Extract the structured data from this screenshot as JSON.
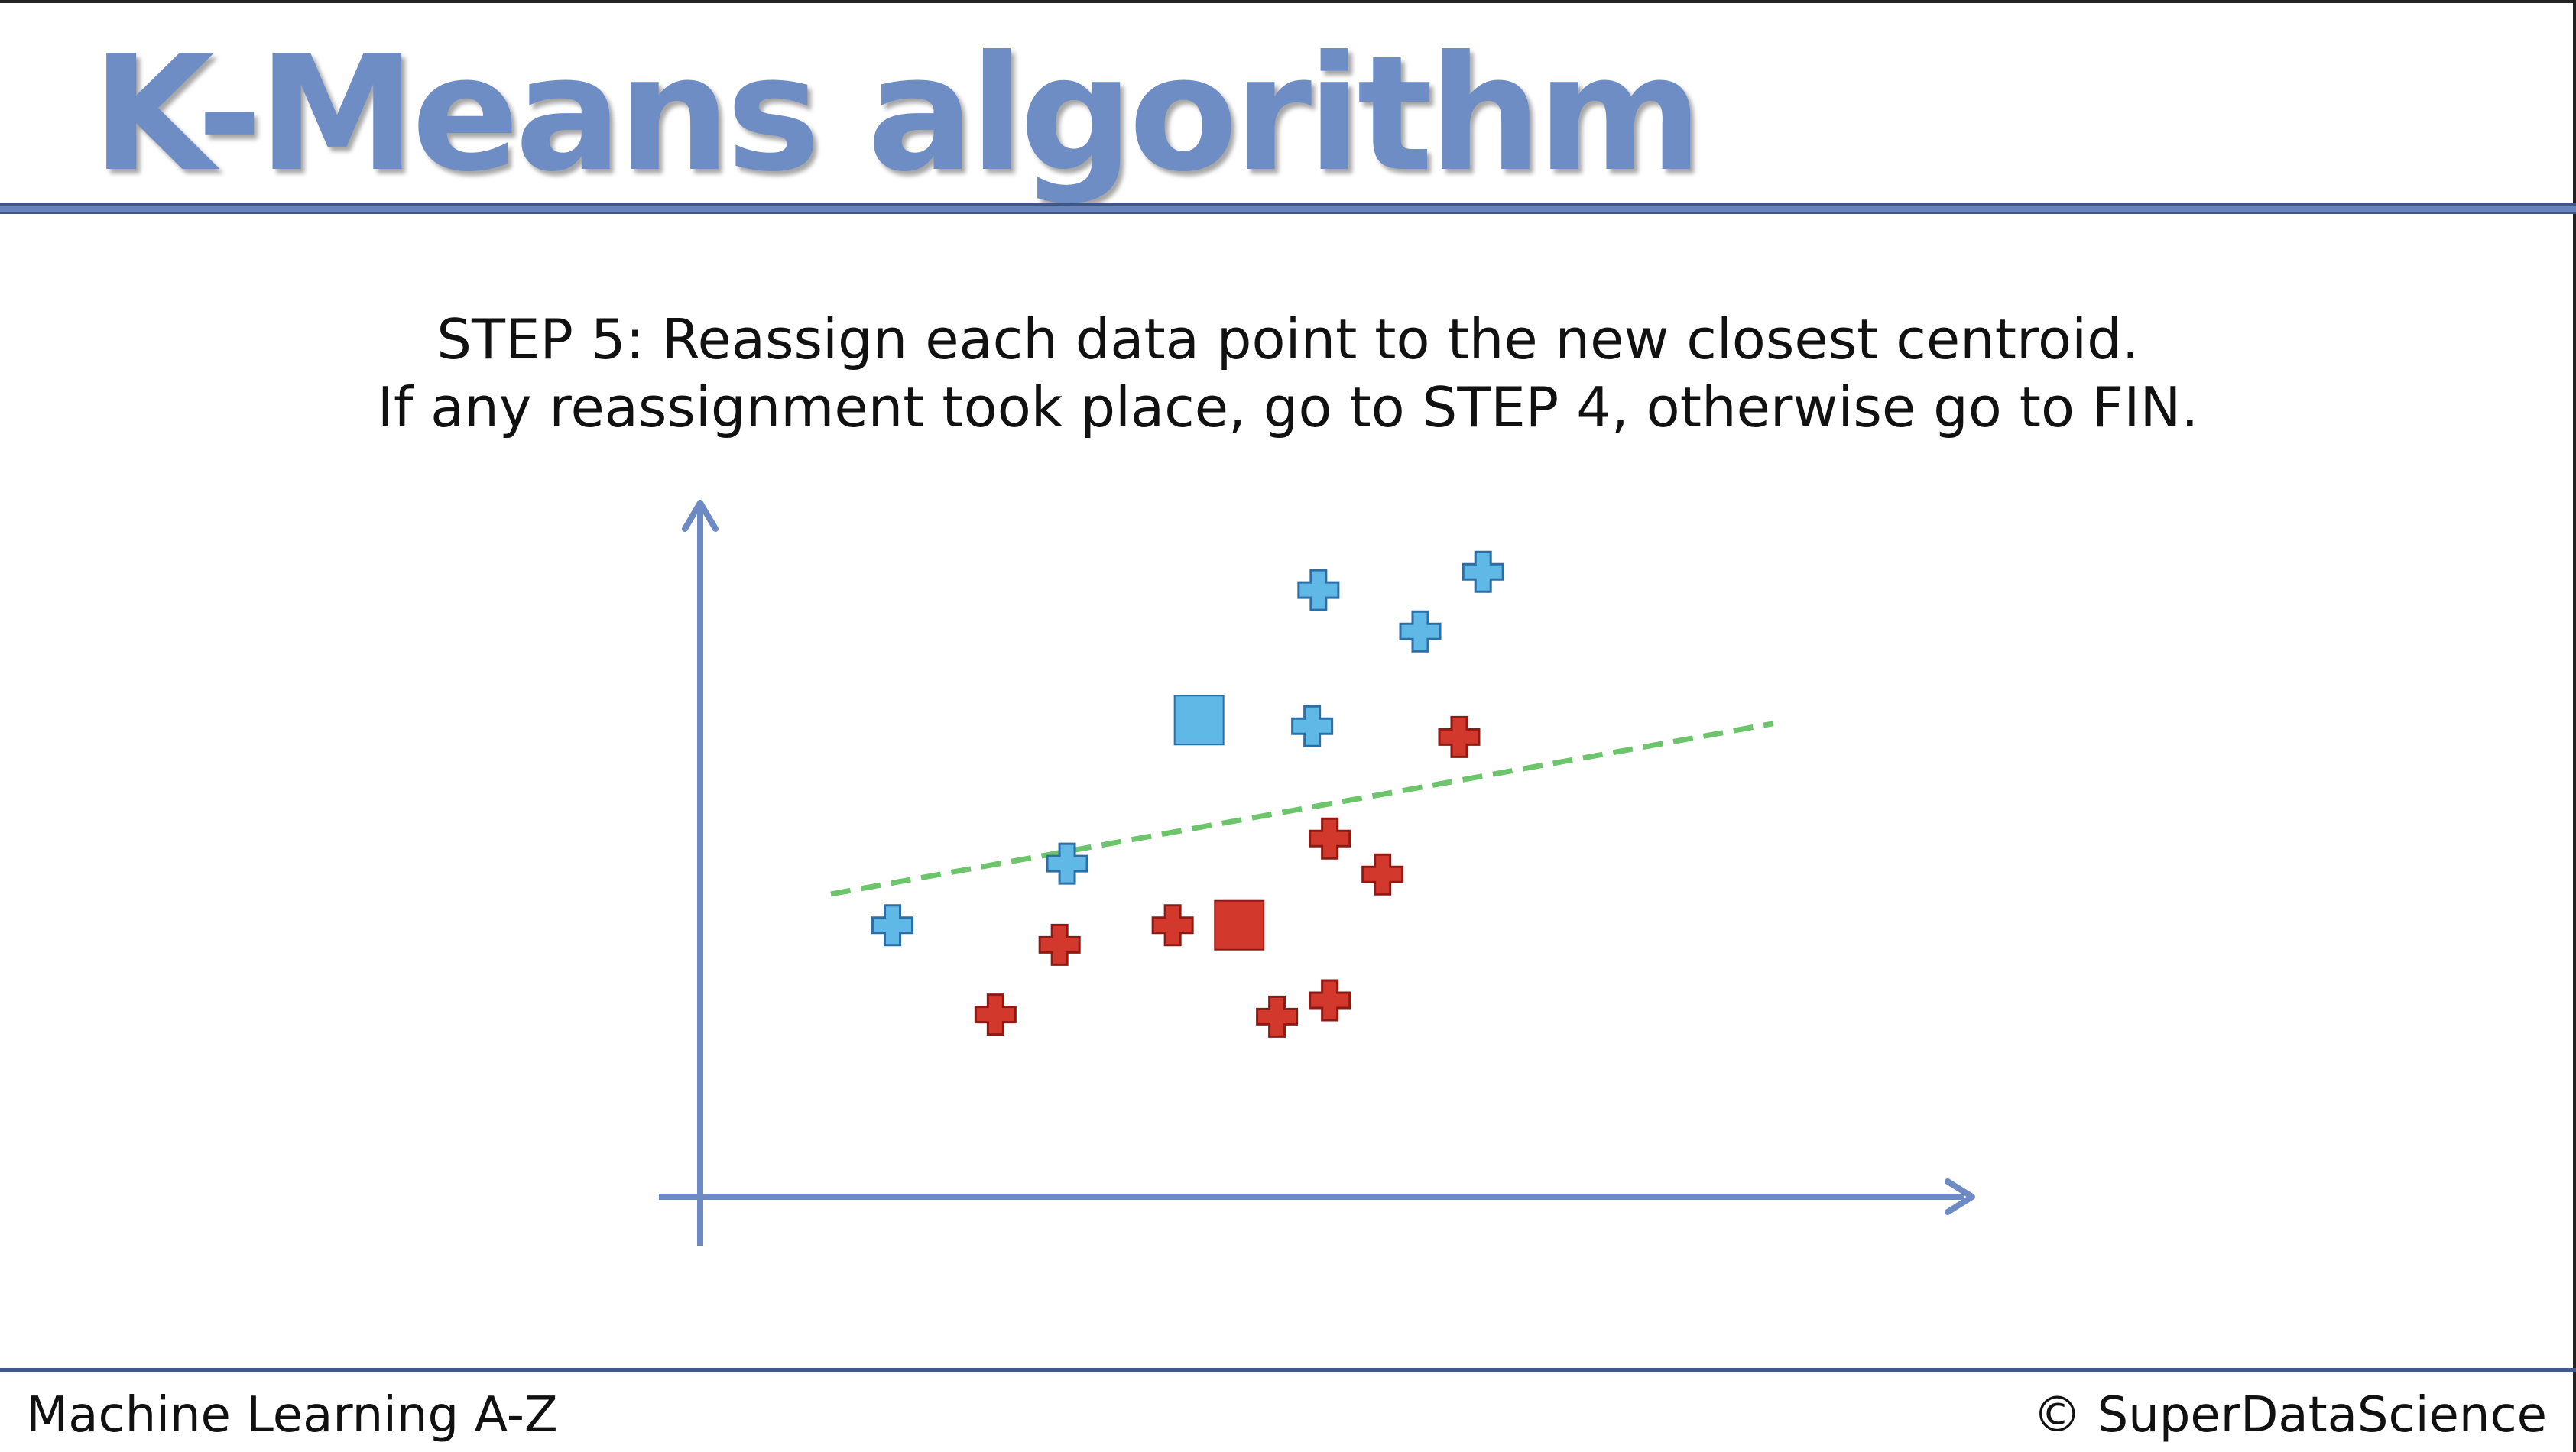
{
  "slide": {
    "title": "K-Means algorithm",
    "step_label": "STEP 5",
    "step_line1_rest": ": Reassign each data point to the new closest centroid.",
    "step_line2": "If any reassignment took place, go to STEP 4, otherwise go to FIN."
  },
  "footer": {
    "course": "Machine Learning A-Z",
    "copyright": "© SuperDataScience"
  },
  "colors": {
    "title": "#6d8dc4",
    "axis": "#6d8ac4",
    "cluster_blue": "#5fb8e6",
    "cluster_blue_edge": "#2c6fa7",
    "cluster_red": "#d2382c",
    "cluster_red_edge": "#8f1a14",
    "boundary": "#6cc56b"
  },
  "chart_data": {
    "type": "scatter",
    "title": "",
    "xlabel": "",
    "ylabel": "",
    "xlim": [
      0,
      100
    ],
    "ylim": [
      0,
      100
    ],
    "grid": false,
    "series": [
      {
        "cluster": "blue",
        "points": [
          {
            "x": 15.3,
            "y": 40.1
          },
          {
            "x": 29.2,
            "y": 49.2
          },
          {
            "x": 48.7,
            "y": 69.5
          },
          {
            "x": 49.2,
            "y": 89.6
          },
          {
            "x": 57.3,
            "y": 83.5
          },
          {
            "x": 62.3,
            "y": 92.3
          }
        ]
      },
      {
        "cluster": "red",
        "points": [
          {
            "x": 23.5,
            "y": 26.9
          },
          {
            "x": 28.6,
            "y": 37.2
          },
          {
            "x": 37.6,
            "y": 40.1
          },
          {
            "x": 45.9,
            "y": 26.6
          },
          {
            "x": 50.1,
            "y": 52.9
          },
          {
            "x": 50.1,
            "y": 29.0
          },
          {
            "x": 54.3,
            "y": 47.6
          },
          {
            "x": 60.4,
            "y": 67.9
          }
        ]
      }
    ],
    "centroids": [
      {
        "cluster": "blue",
        "x": 39.7,
        "y": 70.4
      },
      {
        "cluster": "red",
        "x": 42.9,
        "y": 40.1
      }
    ],
    "boundary_line": {
      "style": "dashed",
      "from": {
        "x": 10.4,
        "y": 44.7
      },
      "to": {
        "x": 85.4,
        "y": 69.9
      }
    }
  }
}
